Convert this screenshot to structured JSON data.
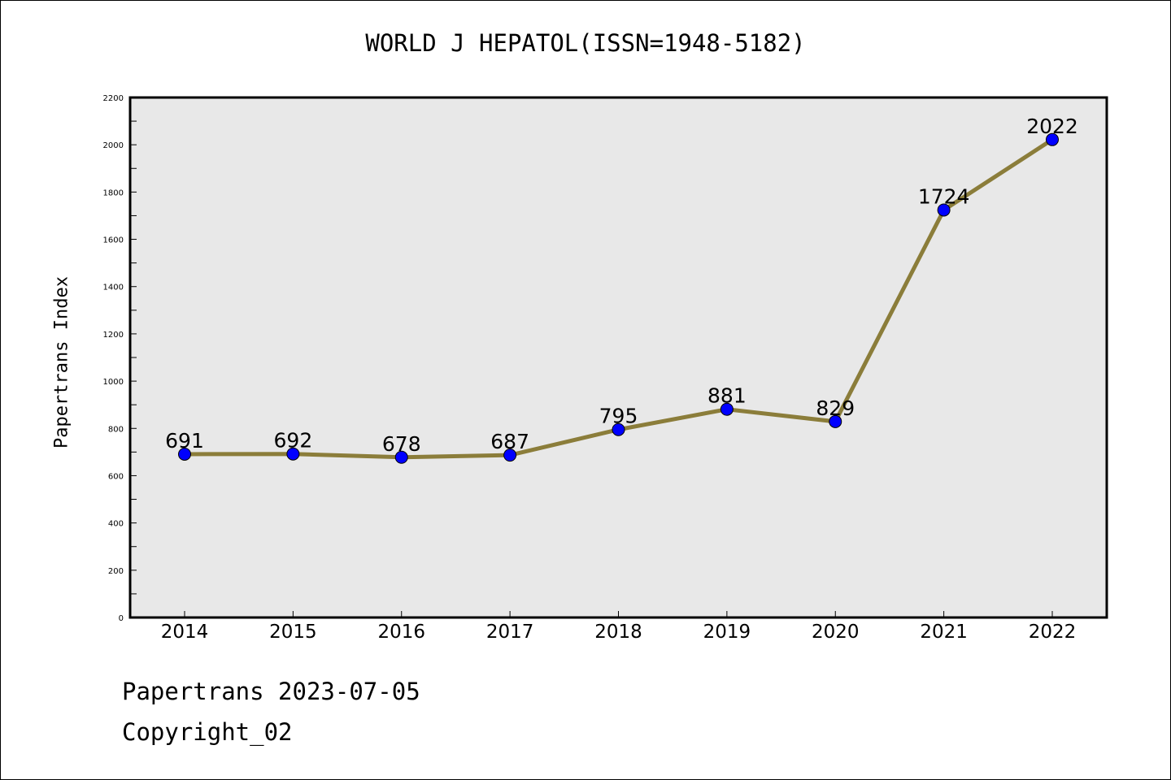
{
  "chart_data": {
    "type": "line",
    "title": "WORLD J HEPATOL(ISSN=1948-5182)",
    "ylabel": "Papertrans Index",
    "xlabel": "",
    "x": [
      "2014",
      "2015",
      "2016",
      "2017",
      "2018",
      "2019",
      "2020",
      "2021",
      "2022"
    ],
    "series": [
      {
        "values": [
          691,
          692,
          678,
          687,
          795,
          881,
          829,
          1724,
          2022
        ],
        "labels": [
          "691",
          "692",
          "678",
          "687",
          "795",
          "881",
          "829",
          "1724",
          "2022"
        ]
      }
    ],
    "ylim": [
      0,
      2200
    ],
    "yticks": [
      0,
      200,
      400,
      600,
      800,
      1000,
      1200,
      1400,
      1600,
      1800,
      2000,
      2200
    ],
    "ytick_labels": [
      "0",
      "200",
      "400",
      "600",
      "800",
      "1000",
      "1200",
      "1400",
      "1600",
      "1800",
      "2000",
      "2200"
    ],
    "grid": false,
    "colors": {
      "line": "#8b7d3a",
      "marker": "#0000ff",
      "plot_background": "#e8e8e8"
    }
  },
  "footer": {
    "date_line": "Papertrans 2023-07-05",
    "copyright": "Copyright_02"
  }
}
